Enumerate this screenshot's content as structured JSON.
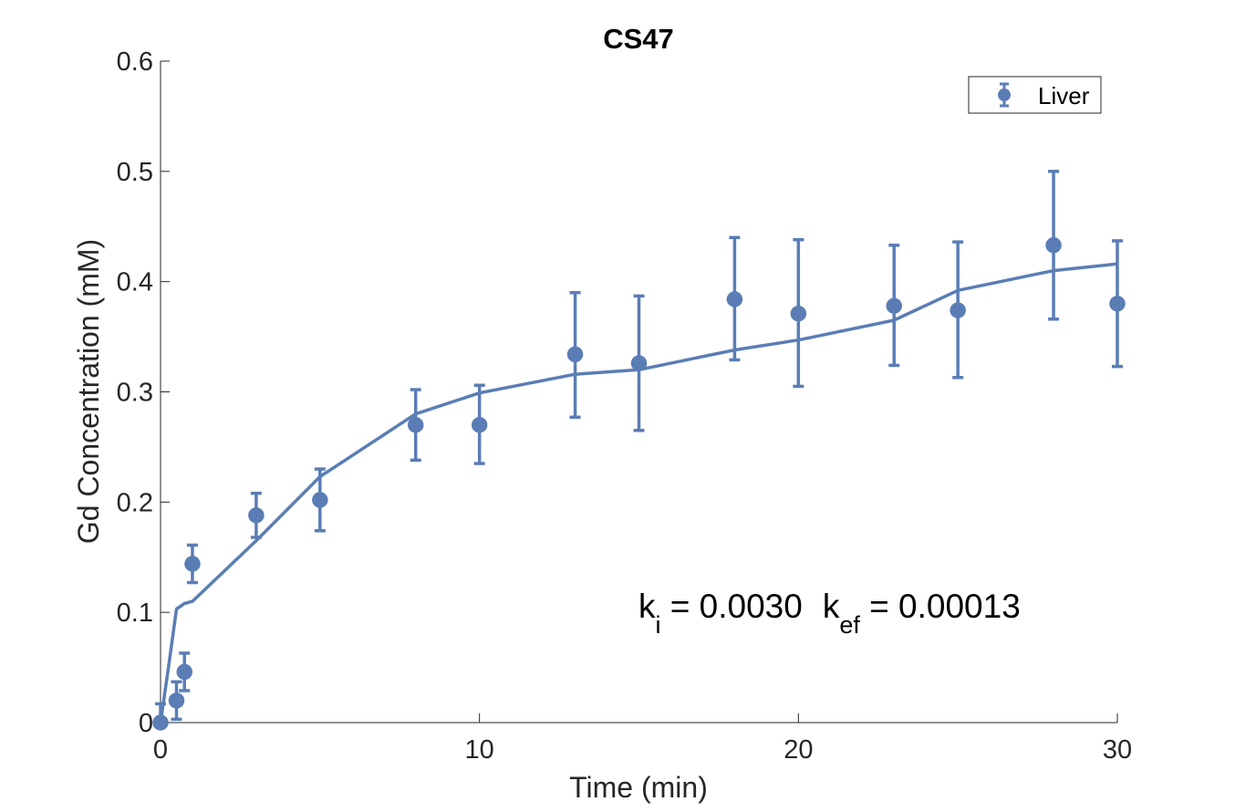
{
  "chart_data": {
    "type": "scatter",
    "title": "CS47",
    "xlabel": "Time (min)",
    "ylabel": "Gd Concentration (mM)",
    "xlim": [
      0,
      30
    ],
    "ylim": [
      0,
      0.6
    ],
    "xticks": [
      0,
      10,
      20,
      30
    ],
    "xtick_labels": [
      "0",
      "10",
      "20",
      "30"
    ],
    "yticks": [
      0,
      0.1,
      0.2,
      0.3,
      0.4,
      0.5,
      0.6
    ],
    "ytick_labels": [
      "0",
      "0.1",
      "0.2",
      "0.3",
      "0.4",
      "0.5",
      "0.6"
    ],
    "grid": false,
    "legend_position": "top-right",
    "color": "#5a7db5",
    "series": [
      {
        "name": "Liver",
        "kind": "errorbar",
        "points": [
          {
            "x": 0,
            "y": 0.0,
            "lo": -0.017,
            "hi": 0.017
          },
          {
            "x": 0.5,
            "y": 0.02,
            "lo": 0.003,
            "hi": 0.037
          },
          {
            "x": 0.75,
            "y": 0.046,
            "lo": 0.029,
            "hi": 0.063
          },
          {
            "x": 1,
            "y": 0.144,
            "lo": 0.127,
            "hi": 0.161
          },
          {
            "x": 3,
            "y": 0.188,
            "lo": 0.168,
            "hi": 0.208
          },
          {
            "x": 5,
            "y": 0.202,
            "lo": 0.174,
            "hi": 0.23
          },
          {
            "x": 8,
            "y": 0.27,
            "lo": 0.238,
            "hi": 0.302
          },
          {
            "x": 10,
            "y": 0.27,
            "lo": 0.235,
            "hi": 0.306
          },
          {
            "x": 13,
            "y": 0.334,
            "lo": 0.277,
            "hi": 0.39
          },
          {
            "x": 15,
            "y": 0.326,
            "lo": 0.265,
            "hi": 0.387
          },
          {
            "x": 18,
            "y": 0.384,
            "lo": 0.329,
            "hi": 0.44
          },
          {
            "x": 20,
            "y": 0.371,
            "lo": 0.305,
            "hi": 0.438
          },
          {
            "x": 23,
            "y": 0.378,
            "lo": 0.324,
            "hi": 0.433
          },
          {
            "x": 25,
            "y": 0.374,
            "lo": 0.313,
            "hi": 0.436
          },
          {
            "x": 28,
            "y": 0.433,
            "lo": 0.366,
            "hi": 0.5
          },
          {
            "x": 30,
            "y": 0.38,
            "lo": 0.323,
            "hi": 0.437
          }
        ]
      },
      {
        "kind": "line",
        "x": [
          0,
          0.25,
          0.5,
          0.75,
          1,
          3,
          5,
          8,
          10,
          13,
          15,
          18,
          20,
          23,
          25,
          28,
          30
        ],
        "y": [
          0.0,
          0.05,
          0.103,
          0.108,
          0.11,
          0.165,
          0.223,
          0.28,
          0.299,
          0.316,
          0.32,
          0.338,
          0.347,
          0.365,
          0.392,
          0.41,
          0.416
        ]
      }
    ],
    "annotation": {
      "k1": "k",
      "k1_sub": "i",
      "k1_val": " = 0.0030",
      "k2": "k",
      "k2_sub": "ef",
      "k2_val": " = 0.00013"
    }
  }
}
